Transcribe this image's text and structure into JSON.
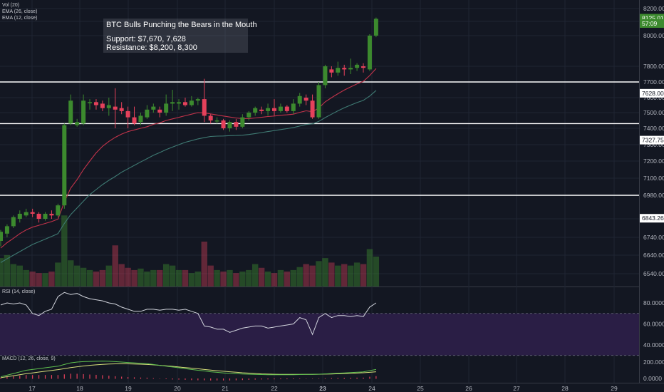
{
  "legends": {
    "vol": "Vol (20)",
    "ema26": "EMA (26, close)",
    "ema12": "EMA (12, close)",
    "rsi": "RSI (14, close)",
    "macd": "MACD (12, 26, close, 9)"
  },
  "note": {
    "title": "BTC Bulls Punching the Bears in the Mouth",
    "support": "Support: $7,670, 7,628",
    "resistance": "Resistance: $8,200, 8,300"
  },
  "colors": {
    "background": "#131722",
    "up": "#3c8a2e",
    "down": "#e5415b",
    "ema12": "#c2334a",
    "ema26": "#3f7a73",
    "rsi_band": "#2a1e45",
    "macd_line": "#5ebf4e",
    "signal_line": "#d6e07a"
  },
  "chart_data": {
    "type": "candlestick",
    "title": "",
    "price_axis_ticks": [
      "8200.00",
      "8100.00",
      "8000.00",
      "7800.00",
      "7700.00",
      "7600.00",
      "7500.00",
      "7400.00",
      "7300.00",
      "7200.00",
      "7100.00",
      "6980.00",
      "6840.00",
      "6740.00",
      "6640.00",
      "6540.00"
    ],
    "rsi_axis_ticks": [
      "80.0000",
      "60.0000",
      "40.0000"
    ],
    "macd_axis_ticks": [
      "200.0000",
      "0.0000"
    ],
    "date_ticks": [
      "17",
      "18",
      "19",
      "20",
      "21",
      "22",
      "23",
      "24",
      "25",
      "26",
      "27",
      "28",
      "29"
    ],
    "bold_date": "23",
    "horizontal_levels": [
      7700,
      7430,
      6980
    ],
    "price_tags": [
      {
        "label": "8125.01",
        "value": 8125.01,
        "color": "#3c8a2e"
      },
      {
        "label": "57:09",
        "value": 8085,
        "color": "#3c8a2e"
      },
      {
        "label": "7628.00",
        "value": 7628,
        "color": "#ffffff"
      },
      {
        "label": "7327.75",
        "value": 7327.75,
        "color": "#ffffff"
      },
      {
        "label": "6843.26",
        "value": 6843.26,
        "color": "#ffffff"
      }
    ],
    "candles": [
      [
        6720,
        6770,
        6690,
        6780
      ],
      [
        6760,
        6800,
        6740,
        6810
      ],
      [
        6800,
        6850,
        6790,
        6860
      ],
      [
        6840,
        6870,
        6820,
        6890
      ],
      [
        6860,
        6880,
        6850,
        6900
      ],
      [
        6880,
        6870,
        6850,
        6900
      ],
      [
        6870,
        6840,
        6820,
        6880
      ],
      [
        6840,
        6870,
        6830,
        6880
      ],
      [
        6870,
        6860,
        6840,
        6890
      ],
      [
        6860,
        6920,
        6850,
        6930
      ],
      [
        6920,
        7420,
        6900,
        7430
      ],
      [
        7430,
        7580,
        7420,
        7620
      ],
      [
        7420,
        7440,
        7410,
        7460
      ],
      [
        7430,
        7580,
        7420,
        7620
      ],
      [
        7570,
        7570,
        7520,
        7590
      ],
      [
        7570,
        7550,
        7520,
        7590
      ],
      [
        7560,
        7530,
        7510,
        7580
      ],
      [
        7530,
        7550,
        7480,
        7600
      ],
      [
        7540,
        7520,
        7400,
        7660
      ],
      [
        7530,
        7510,
        7490,
        7570
      ],
      [
        7510,
        7470,
        7400,
        7540
      ],
      [
        7470,
        7430,
        7420,
        7540
      ],
      [
        7440,
        7480,
        7420,
        7500
      ],
      [
        7470,
        7520,
        7460,
        7550
      ],
      [
        7520,
        7540,
        7500,
        7560
      ],
      [
        7520,
        7500,
        7470,
        7540
      ],
      [
        7500,
        7560,
        7480,
        7620
      ],
      [
        7560,
        7570,
        7510,
        7650
      ],
      [
        7560,
        7570,
        7520,
        7590
      ],
      [
        7570,
        7550,
        7540,
        7600
      ],
      [
        7550,
        7580,
        7540,
        7610
      ],
      [
        7580,
        7590,
        7550,
        7600
      ],
      [
        7590,
        7480,
        7440,
        7720
      ],
      [
        7480,
        7450,
        7430,
        7490
      ],
      [
        7450,
        7450,
        7430,
        7470
      ],
      [
        7450,
        7400,
        7390,
        7460
      ],
      [
        7400,
        7440,
        7380,
        7450
      ],
      [
        7440,
        7410,
        7390,
        7460
      ],
      [
        7410,
        7470,
        7400,
        7490
      ],
      [
        7470,
        7500,
        7450,
        7510
      ],
      [
        7500,
        7530,
        7480,
        7540
      ],
      [
        7520,
        7510,
        7490,
        7540
      ],
      [
        7510,
        7530,
        7480,
        7560
      ],
      [
        7530,
        7510,
        7480,
        7590
      ],
      [
        7510,
        7540,
        7500,
        7560
      ],
      [
        7540,
        7510,
        7500,
        7550
      ],
      [
        7510,
        7560,
        7490,
        7590
      ],
      [
        7560,
        7610,
        7540,
        7630
      ],
      [
        7600,
        7580,
        7550,
        7620
      ],
      [
        7580,
        7470,
        7460,
        7620
      ],
      [
        7470,
        7680,
        7460,
        7700
      ],
      [
        7680,
        7800,
        7660,
        7810
      ],
      [
        7780,
        7760,
        7730,
        7800
      ],
      [
        7760,
        7790,
        7740,
        7830
      ],
      [
        7790,
        7780,
        7740,
        7810
      ],
      [
        7780,
        7790,
        7750,
        7850
      ],
      [
        7790,
        7810,
        7770,
        7820
      ],
      [
        7800,
        7790,
        7760,
        7820
      ],
      [
        7780,
        8000,
        7770,
        8010
      ],
      [
        8000,
        8120,
        7990,
        8130
      ]
    ],
    "ema12": [
      6680,
      6710,
      6735,
      6760,
      6780,
      6795,
      6805,
      6815,
      6825,
      6838,
      6940,
      7030,
      7090,
      7150,
      7200,
      7250,
      7290,
      7320,
      7345,
      7365,
      7380,
      7390,
      7400,
      7410,
      7425,
      7435,
      7450,
      7460,
      7470,
      7480,
      7490,
      7500,
      7498,
      7492,
      7485,
      7478,
      7472,
      7466,
      7462,
      7462,
      7466,
      7470,
      7475,
      7478,
      7483,
      7486,
      7490,
      7502,
      7512,
      7506,
      7531,
      7572,
      7600,
      7625,
      7648,
      7668,
      7688,
      7704,
      7741,
      7786
    ],
    "ema26": [
      6600,
      6620,
      6640,
      6660,
      6680,
      6700,
      6715,
      6730,
      6745,
      6760,
      6815,
      6865,
      6905,
      6945,
      6985,
      7020,
      7055,
      7085,
      7110,
      7135,
      7155,
      7175,
      7195,
      7215,
      7235,
      7252,
      7270,
      7285,
      7300,
      7315,
      7325,
      7335,
      7343,
      7350,
      7352,
      7353,
      7355,
      7356,
      7358,
      7362,
      7368,
      7374,
      7380,
      7386,
      7392,
      7398,
      7405,
      7414,
      7424,
      7428,
      7444,
      7468,
      7490,
      7512,
      7532,
      7550,
      7567,
      7582,
      7610,
      7646
    ],
    "volume": [
      38,
      42,
      30,
      28,
      22,
      20,
      18,
      18,
      20,
      32,
      95,
      35,
      28,
      25,
      22,
      20,
      22,
      28,
      55,
      30,
      25,
      22,
      24,
      20,
      22,
      22,
      30,
      28,
      22,
      22,
      18,
      20,
      60,
      28,
      22,
      20,
      22,
      18,
      20,
      22,
      30,
      25,
      20,
      18,
      22,
      20,
      22,
      26,
      30,
      28,
      34,
      38,
      32,
      28,
      30,
      28,
      32,
      30,
      50,
      40
    ],
    "rsi": [
      78,
      80,
      79,
      80,
      78,
      70,
      68,
      72,
      74,
      86,
      90,
      88,
      89,
      86,
      84,
      83,
      82,
      80,
      79,
      76,
      74,
      72,
      72,
      74,
      74,
      73,
      74,
      74,
      73,
      74,
      72,
      70,
      58,
      57,
      55,
      55,
      52,
      54,
      56,
      57,
      58,
      58,
      56,
      57,
      58,
      59,
      60,
      66,
      64,
      50,
      66,
      70,
      66,
      68,
      68,
      67,
      68,
      67,
      76,
      80
    ],
    "macd": [
      20,
      40,
      60,
      80,
      100,
      110,
      120,
      130,
      140,
      150,
      170,
      190,
      200,
      205,
      208,
      210,
      212,
      210,
      205,
      200,
      195,
      190,
      185,
      180,
      170,
      160,
      150,
      140,
      130,
      120,
      110,
      100,
      92,
      82,
      75,
      68,
      62,
      58,
      55,
      52,
      50,
      48,
      46,
      45,
      45,
      45,
      46,
      48,
      50,
      50,
      52,
      56,
      60,
      64,
      68,
      72,
      76,
      80,
      96,
      110
    ],
    "signal": [
      10,
      22,
      34,
      46,
      58,
      68,
      78,
      88,
      98,
      108,
      120,
      132,
      143,
      152,
      160,
      166,
      172,
      176,
      178,
      178,
      178,
      176,
      174,
      170,
      166,
      160,
      154,
      148,
      140,
      132,
      126,
      118,
      110,
      102,
      95,
      88,
      82,
      76,
      70,
      65,
      60,
      56,
      53,
      51,
      50,
      50,
      50,
      50,
      50,
      50,
      51,
      53,
      55,
      57,
      60,
      63,
      66,
      70,
      75,
      82
    ]
  }
}
